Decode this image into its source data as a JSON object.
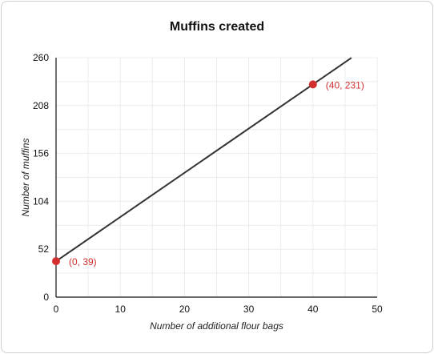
{
  "chart_data": {
    "type": "line",
    "title": "Muffins created",
    "xlabel": "Number of additional flour bags",
    "ylabel": "Number of muffins",
    "xlim": [
      0,
      50
    ],
    "ylim": [
      0,
      260
    ],
    "x_ticks": [
      0,
      10,
      20,
      30,
      40,
      50
    ],
    "y_ticks": [
      0,
      52,
      104,
      156,
      208,
      260
    ],
    "grid": true,
    "line": {
      "x": [
        0,
        46
      ],
      "y": [
        39,
        259.8
      ],
      "slope": 4.8,
      "intercept": 39,
      "color": "#333333"
    },
    "points": [
      {
        "x": 0,
        "y": 39,
        "label": "(0, 39)"
      },
      {
        "x": 40,
        "y": 231,
        "label": "(40, 231)"
      }
    ],
    "point_color": "#d32f2f"
  }
}
